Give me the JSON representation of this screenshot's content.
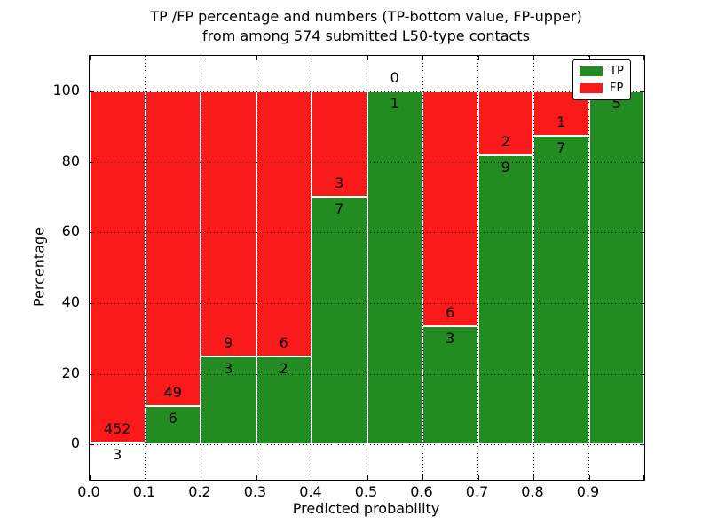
{
  "figure": {
    "title_line1": "TP /FP percentage and numbers (TP-bottom value, FP-upper)",
    "title_line2": "from among 574 submitted L50-type contacts"
  },
  "chart_data": {
    "type": "bar",
    "subtype": "stacked-percentage-histogram",
    "title": "TP /FP percentage and numbers (TP-bottom value, FP-upper) from among 574 submitted L50-type contacts",
    "xlabel": "Predicted probability",
    "ylabel": "Percentage",
    "xlim": [
      0.0,
      1.0
    ],
    "ylim": [
      -10,
      110
    ],
    "x_tick_labels": [
      "0.0",
      "0.1",
      "0.2",
      "0.3",
      "0.4",
      "0.5",
      "0.6",
      "0.7",
      "0.8",
      "0.9"
    ],
    "y_ticks": [
      0,
      20,
      40,
      60,
      80,
      100
    ],
    "grid": true,
    "bin_width": 0.1,
    "bin_starts": [
      0.0,
      0.1,
      0.2,
      0.3,
      0.4,
      0.5,
      0.6,
      0.7,
      0.8,
      0.9
    ],
    "total_contacts": 574,
    "series": [
      {
        "name": "TP",
        "color": "#228b22",
        "counts": [
          3,
          6,
          3,
          2,
          7,
          1,
          3,
          9,
          7,
          5
        ]
      },
      {
        "name": "FP",
        "color": "#fb1a1a",
        "counts": [
          452,
          49,
          9,
          6,
          3,
          0,
          6,
          2,
          1,
          0
        ]
      }
    ],
    "bar_percent_tp": [
      0.66,
      10.91,
      25.0,
      25.0,
      70.0,
      100.0,
      33.33,
      81.82,
      87.5,
      100.0
    ],
    "legend": {
      "position": "upper right",
      "entries": [
        "TP",
        "FP"
      ]
    }
  },
  "colors": {
    "tp_green": "#228b22",
    "fp_red": "#fb1a1a",
    "grid": "#000000",
    "background": "#ffffff"
  }
}
